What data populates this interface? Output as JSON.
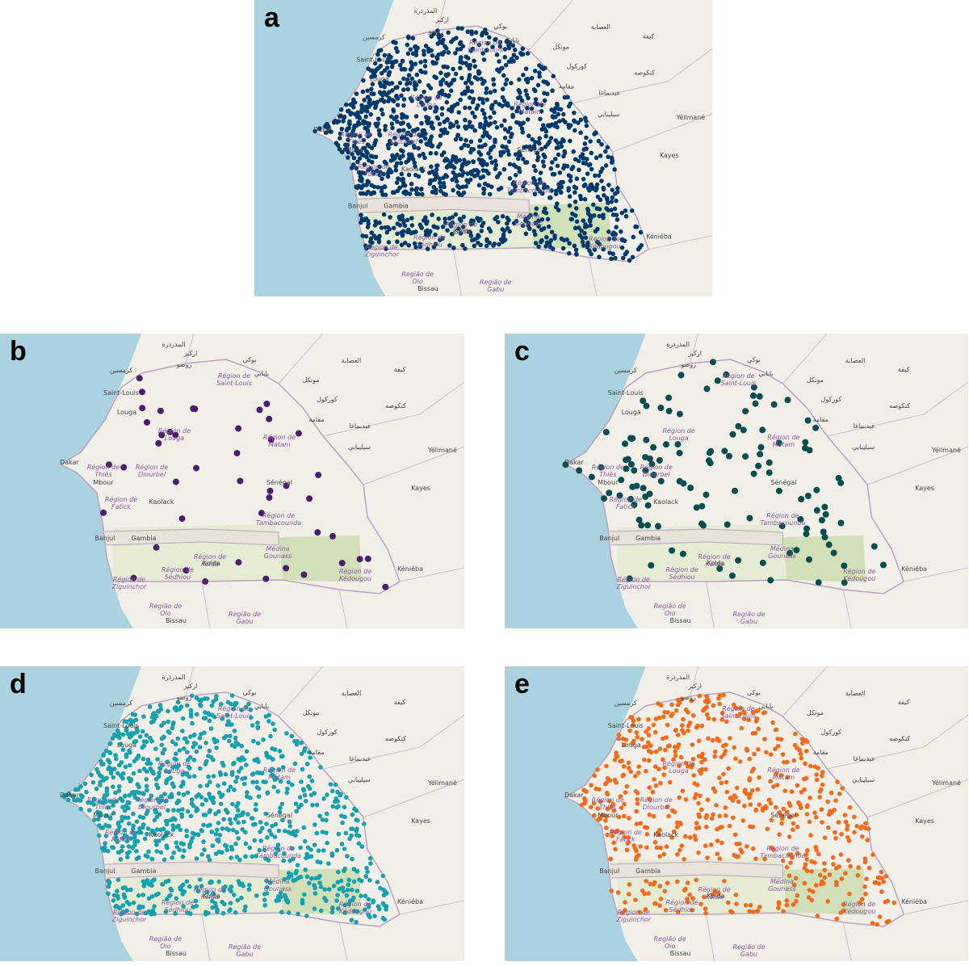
{
  "panels": [
    {
      "label": "a",
      "color": "#003a6b"
    },
    {
      "label": "b",
      "color": "#4a1e6e"
    },
    {
      "label": "c",
      "color": "#0a4d4f"
    },
    {
      "label": "d",
      "color": "#17a0ad"
    },
    {
      "label": "e",
      "color": "#f26a1b"
    }
  ],
  "map_labels": [
    {
      "lines": [
        "المذرذرة"
      ]
    },
    {
      "lines": [
        "اركيز"
      ]
    },
    {
      "lines": [
        "كرمسين"
      ]
    },
    {
      "lines": [
        "روصو"
      ]
    },
    {
      "lines": [
        "بوكي"
      ]
    },
    {
      "lines": [
        "بابابي"
      ]
    },
    {
      "lines": [
        "مونكل"
      ]
    },
    {
      "lines": [
        "العصابة"
      ]
    },
    {
      "lines": [
        "كيفة"
      ]
    },
    {
      "lines": [
        "كوركول"
      ]
    },
    {
      "lines": [
        "كنكوصه"
      ]
    },
    {
      "lines": [
        "مقامة"
      ]
    },
    {
      "lines": [
        "عيدبماغا"
      ]
    },
    {
      "lines": [
        "سيليبابي"
      ]
    },
    {
      "lines": [
        "Yélimané"
      ]
    },
    {
      "lines": [
        "Saint-Louis"
      ]
    },
    {
      "lines": [
        "Région de",
        "Saint-Louis"
      ]
    },
    {
      "lines": [
        "Louga"
      ]
    },
    {
      "lines": [
        "Région de",
        "Louga"
      ]
    },
    {
      "lines": [
        "Région de",
        "Matam"
      ]
    },
    {
      "lines": [
        "Dakar"
      ]
    },
    {
      "lines": [
        "Région de",
        "Thiès"
      ]
    },
    {
      "lines": [
        "Région de",
        "Diourbel"
      ]
    },
    {
      "lines": [
        "Sénégal"
      ]
    },
    {
      "lines": [
        "Mbour"
      ]
    },
    {
      "lines": [
        "Région de",
        "Fatick"
      ]
    },
    {
      "lines": [
        "Kaolack"
      ]
    },
    {
      "lines": [
        "Kayes"
      ]
    },
    {
      "lines": [
        "Région de",
        "Tambacounda"
      ]
    },
    {
      "lines": [
        "Banjul"
      ]
    },
    {
      "lines": [
        "Gambia"
      ]
    },
    {
      "lines": [
        "Médina",
        "Gounass"
      ]
    },
    {
      "lines": [
        "Région de",
        "Kolda"
      ]
    },
    {
      "lines": [
        "Kolda"
      ]
    },
    {
      "lines": [
        "Région de",
        "Sédhiou"
      ]
    },
    {
      "lines": [
        "Région de",
        "Ziguinchor"
      ]
    },
    {
      "lines": [
        "Région de",
        "Kédougou"
      ]
    },
    {
      "lines": [
        "Kéniéba"
      ]
    },
    {
      "lines": [
        "Região de",
        "Oio"
      ]
    },
    {
      "lines": [
        "Região de",
        "Gabu"
      ]
    },
    {
      "lines": [
        "Bissau"
      ]
    }
  ]
}
